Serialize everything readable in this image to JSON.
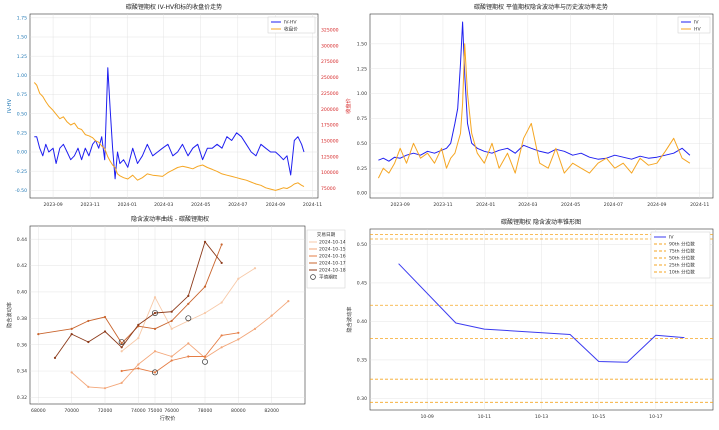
{
  "chart_data": [
    {
      "id": "c1",
      "type": "line",
      "title": "碳酸锂期权 IV-HV和标的收盘价走势",
      "xlabel": "",
      "ylabel": "IV-HV",
      "y2label": "收盘价",
      "ylim": [
        -0.6,
        1.8
      ],
      "y2lim": [
        60000,
        350000
      ],
      "yticks": [
        -0.5,
        -0.25,
        0.0,
        0.25,
        0.5,
        0.75,
        1.0,
        1.25,
        1.5,
        1.75
      ],
      "ytick_labels": [
        "-0.50",
        "-0.25",
        "0.00",
        "0.25",
        "0.50",
        "0.75",
        "1.00",
        "1.25",
        "1.50",
        "1.75"
      ],
      "y2ticks": [
        75000,
        100000,
        125000,
        150000,
        175000,
        200000,
        225000,
        250000,
        275000,
        300000,
        325000
      ],
      "xticks": [
        "2023-09",
        "2023-11",
        "2024-01",
        "2024-03",
        "2024-05",
        "2024-07",
        "2024-09",
        "2024-11"
      ],
      "legend": [
        "IV-HV",
        "收盘价"
      ],
      "legend_loc": "top-right",
      "series": [
        {
          "name": "IV-HV",
          "axis": "left",
          "color": "#1f1ff0",
          "x": [
            "2023-08-01",
            "2023-08-05",
            "2023-08-10",
            "2023-08-15",
            "2023-08-20",
            "2023-08-25",
            "2023-09-01",
            "2023-09-06",
            "2023-09-12",
            "2023-09-18",
            "2023-09-24",
            "2023-09-30",
            "2023-10-06",
            "2023-10-12",
            "2023-10-18",
            "2023-10-24",
            "2023-10-30",
            "2023-11-05",
            "2023-11-10",
            "2023-11-15",
            "2023-11-20",
            "2023-11-25",
            "2023-11-30",
            "2023-12-04",
            "2023-12-08",
            "2023-12-12",
            "2023-12-16",
            "2023-12-20",
            "2023-12-26",
            "2024-01-02",
            "2024-01-10",
            "2024-01-18",
            "2024-01-26",
            "2024-02-03",
            "2024-02-12",
            "2024-02-20",
            "2024-02-28",
            "2024-03-08",
            "2024-03-16",
            "2024-03-24",
            "2024-04-01",
            "2024-04-10",
            "2024-04-18",
            "2024-04-26",
            "2024-05-04",
            "2024-05-12",
            "2024-05-20",
            "2024-05-28",
            "2024-06-05",
            "2024-06-13",
            "2024-06-21",
            "2024-06-29",
            "2024-07-07",
            "2024-07-15",
            "2024-07-23",
            "2024-07-31",
            "2024-08-08",
            "2024-08-16",
            "2024-08-24",
            "2024-09-01",
            "2024-09-08",
            "2024-09-14",
            "2024-09-20",
            "2024-09-26",
            "2024-10-02",
            "2024-10-08",
            "2024-10-14",
            "2024-10-18"
          ],
          "y": [
            0.2,
            0.2,
            0.05,
            -0.05,
            0.1,
            0.0,
            0.05,
            -0.15,
            0.05,
            0.1,
            0.0,
            -0.1,
            -0.05,
            0.05,
            -0.1,
            0.05,
            -0.05,
            0.1,
            0.15,
            0.05,
            0.2,
            -0.1,
            1.1,
            0.55,
            0.05,
            -0.35,
            0.0,
            -0.15,
            -0.1,
            -0.2,
            0.05,
            -0.15,
            -0.05,
            0.1,
            -0.05,
            0.0,
            0.05,
            0.1,
            -0.05,
            0.0,
            0.1,
            -0.05,
            0.05,
            0.1,
            -0.1,
            0.05,
            0.05,
            0.1,
            0.05,
            0.2,
            0.15,
            0.25,
            0.2,
            0.1,
            0.0,
            -0.05,
            0.1,
            0.05,
            0.0,
            0.0,
            -0.05,
            -0.1,
            -0.05,
            -0.3,
            0.15,
            0.2,
            0.1,
            0.0
          ]
        },
        {
          "name": "收盘价",
          "axis": "right",
          "color": "#f5a623",
          "x": [
            "2023-08-01",
            "2023-08-05",
            "2023-08-10",
            "2023-08-15",
            "2023-08-20",
            "2023-08-25",
            "2023-09-01",
            "2023-09-06",
            "2023-09-12",
            "2023-09-18",
            "2023-09-24",
            "2023-09-30",
            "2023-10-06",
            "2023-10-12",
            "2023-10-18",
            "2023-10-24",
            "2023-10-30",
            "2023-11-05",
            "2023-11-10",
            "2023-11-15",
            "2023-11-20",
            "2023-11-25",
            "2023-11-30",
            "2023-12-04",
            "2023-12-08",
            "2023-12-12",
            "2023-12-16",
            "2023-12-20",
            "2023-12-26",
            "2024-01-02",
            "2024-01-10",
            "2024-01-18",
            "2024-01-26",
            "2024-02-03",
            "2024-02-12",
            "2024-02-20",
            "2024-02-28",
            "2024-03-08",
            "2024-03-16",
            "2024-03-24",
            "2024-04-01",
            "2024-04-10",
            "2024-04-18",
            "2024-04-26",
            "2024-05-04",
            "2024-05-12",
            "2024-05-20",
            "2024-05-28",
            "2024-06-05",
            "2024-06-13",
            "2024-06-21",
            "2024-06-29",
            "2024-07-07",
            "2024-07-15",
            "2024-07-23",
            "2024-07-31",
            "2024-08-08",
            "2024-08-16",
            "2024-08-24",
            "2024-09-01",
            "2024-09-08",
            "2024-09-14",
            "2024-09-20",
            "2024-09-26",
            "2024-10-02",
            "2024-10-08",
            "2024-10-14",
            "2024-10-18"
          ],
          "y": [
            242000,
            238000,
            225000,
            220000,
            212000,
            205000,
            198000,
            192000,
            185000,
            188000,
            180000,
            175000,
            178000,
            170000,
            168000,
            160000,
            158000,
            155000,
            150000,
            148000,
            142000,
            138000,
            125000,
            118000,
            112000,
            108000,
            98000,
            95000,
            92000,
            90000,
            96000,
            88000,
            92000,
            98000,
            96000,
            95000,
            94000,
            100000,
            104000,
            108000,
            110000,
            108000,
            106000,
            110000,
            112000,
            108000,
            105000,
            102000,
            98000,
            96000,
            94000,
            92000,
            90000,
            88000,
            85000,
            82000,
            80000,
            76000,
            74000,
            72000,
            74000,
            76000,
            75000,
            78000,
            82000,
            84000,
            80000,
            78000
          ]
        }
      ]
    },
    {
      "id": "c2",
      "type": "line",
      "title": "碳酸锂期权 平值期权隐含波动率与历史波动率走势",
      "xlabel": "",
      "ylabel": "",
      "ylim": [
        -0.05,
        1.8
      ],
      "yticks": [
        0.0,
        0.25,
        0.5,
        0.75,
        1.0,
        1.25,
        1.5
      ],
      "ytick_labels": [
        "0.00",
        "0.25",
        "0.50",
        "0.75",
        "1.00",
        "1.25",
        "1.50"
      ],
      "xticks": [
        "2023-09",
        "2023-11",
        "2024-01",
        "2024-03",
        "2024-05",
        "2024-07",
        "2024-09",
        "2024-11"
      ],
      "legend": [
        "IV",
        "HV"
      ],
      "legend_loc": "top-right",
      "series": [
        {
          "name": "IV",
          "color": "#1f1ff0",
          "x": [
            "2023-08-01",
            "2023-08-08",
            "2023-08-16",
            "2023-08-24",
            "2023-09-01",
            "2023-09-10",
            "2023-09-20",
            "2023-09-30",
            "2023-10-10",
            "2023-10-20",
            "2023-10-30",
            "2023-11-06",
            "2023-11-12",
            "2023-11-18",
            "2023-11-22",
            "2023-11-26",
            "2023-11-29",
            "2023-12-02",
            "2023-12-06",
            "2023-12-12",
            "2023-12-20",
            "2023-12-30",
            "2024-01-10",
            "2024-01-20",
            "2024-02-01",
            "2024-02-12",
            "2024-02-24",
            "2024-03-06",
            "2024-03-18",
            "2024-03-30",
            "2024-04-10",
            "2024-04-22",
            "2024-05-04",
            "2024-05-16",
            "2024-05-28",
            "2024-06-09",
            "2024-06-21",
            "2024-07-03",
            "2024-07-15",
            "2024-07-27",
            "2024-08-08",
            "2024-08-20",
            "2024-09-01",
            "2024-09-13",
            "2024-09-25",
            "2024-10-07",
            "2024-10-18"
          ],
          "y": [
            0.33,
            0.35,
            0.32,
            0.36,
            0.35,
            0.38,
            0.4,
            0.38,
            0.42,
            0.4,
            0.43,
            0.45,
            0.5,
            0.7,
            0.85,
            1.3,
            1.72,
            1.2,
            0.7,
            0.5,
            0.45,
            0.42,
            0.4,
            0.43,
            0.45,
            0.4,
            0.48,
            0.45,
            0.42,
            0.4,
            0.44,
            0.42,
            0.38,
            0.4,
            0.36,
            0.34,
            0.35,
            0.38,
            0.36,
            0.34,
            0.37,
            0.35,
            0.36,
            0.38,
            0.4,
            0.45,
            0.38
          ]
        },
        {
          "name": "HV",
          "color": "#f5a623",
          "x": [
            "2023-08-01",
            "2023-08-08",
            "2023-08-16",
            "2023-08-24",
            "2023-09-01",
            "2023-09-10",
            "2023-09-20",
            "2023-09-30",
            "2023-10-10",
            "2023-10-20",
            "2023-10-30",
            "2023-11-06",
            "2023-11-12",
            "2023-11-18",
            "2023-11-22",
            "2023-11-26",
            "2023-11-29",
            "2023-12-02",
            "2023-12-06",
            "2023-12-12",
            "2023-12-20",
            "2023-12-30",
            "2024-01-10",
            "2024-01-20",
            "2024-02-01",
            "2024-02-12",
            "2024-02-24",
            "2024-03-06",
            "2024-03-18",
            "2024-03-30",
            "2024-04-10",
            "2024-04-22",
            "2024-05-04",
            "2024-05-16",
            "2024-05-28",
            "2024-06-09",
            "2024-06-21",
            "2024-07-03",
            "2024-07-15",
            "2024-07-27",
            "2024-08-08",
            "2024-08-20",
            "2024-09-01",
            "2024-09-13",
            "2024-09-25",
            "2024-10-07",
            "2024-10-18"
          ],
          "y": [
            0.15,
            0.25,
            0.2,
            0.3,
            0.45,
            0.3,
            0.5,
            0.35,
            0.4,
            0.3,
            0.45,
            0.25,
            0.35,
            0.4,
            0.5,
            0.6,
            0.9,
            1.5,
            1.0,
            0.6,
            0.4,
            0.3,
            0.5,
            0.25,
            0.4,
            0.2,
            0.55,
            0.7,
            0.3,
            0.25,
            0.45,
            0.2,
            0.3,
            0.25,
            0.2,
            0.3,
            0.35,
            0.25,
            0.3,
            0.2,
            0.35,
            0.28,
            0.3,
            0.42,
            0.55,
            0.35,
            0.3
          ]
        }
      ]
    },
    {
      "id": "c3",
      "type": "line",
      "title": "隐含波动率曲线 - 碳酸锂期权",
      "xlabel": "行权价",
      "ylabel": "隐含波动率",
      "xlim": [
        67500,
        84000
      ],
      "ylim": [
        0.315,
        0.45
      ],
      "xticks": [
        68000,
        70000,
        72000,
        74000,
        75000,
        76000,
        78000,
        80000,
        82000
      ],
      "yticks": [
        0.32,
        0.34,
        0.36,
        0.38,
        0.4,
        0.42,
        0.44
      ],
      "ytick_labels": [
        "0.32",
        "0.34",
        "0.36",
        "0.38",
        "0.40",
        "0.42",
        "0.44"
      ],
      "legend_title": "交易日期",
      "legend": [
        "2024-10-14",
        "2024-10-15",
        "2024-10-16",
        "2024-10-17",
        "2024-10-18",
        "平值期权"
      ],
      "legend_loc": "top-right",
      "series": [
        {
          "name": "2024-10-14",
          "color": "#f7c9a8",
          "x": [
            73000,
            74000,
            75000,
            76000,
            77000,
            78000,
            79000,
            80000,
            81000
          ],
          "y": [
            0.355,
            0.365,
            0.396,
            0.372,
            0.378,
            0.384,
            0.392,
            0.41,
            0.418
          ]
        },
        {
          "name": "2024-10-15",
          "color": "#f3a77a",
          "x": [
            70000,
            71000,
            72000,
            73000,
            74000,
            75000,
            76000,
            77000,
            78000,
            79000,
            80000,
            81000,
            82000,
            83000
          ],
          "y": [
            0.339,
            0.328,
            0.327,
            0.331,
            0.345,
            0.355,
            0.351,
            0.361,
            0.35,
            0.358,
            0.364,
            0.372,
            0.382,
            0.393
          ]
        },
        {
          "name": "2024-10-16",
          "color": "#e57d45",
          "x": [
            73000,
            74000,
            75000,
            76000,
            77000,
            78000,
            79000,
            80000
          ],
          "y": [
            0.34,
            0.342,
            0.339,
            0.348,
            0.351,
            0.351,
            0.367,
            0.369
          ]
        },
        {
          "name": "2024-10-17",
          "color": "#c9652e",
          "x": [
            68000,
            70000,
            71000,
            72000,
            73000,
            74000,
            75000,
            76000,
            77000,
            78000,
            79000
          ],
          "y": [
            0.368,
            0.372,
            0.378,
            0.381,
            0.361,
            0.374,
            0.372,
            0.378,
            0.391,
            0.404,
            0.436
          ]
        },
        {
          "name": "2024-10-18",
          "color": "#8c3a1a",
          "x": [
            69000,
            70000,
            71000,
            72000,
            73000,
            74000,
            75000,
            76000,
            77000,
            78000,
            79000
          ],
          "y": [
            0.35,
            0.368,
            0.362,
            0.37,
            0.358,
            0.375,
            0.384,
            0.385,
            0.397,
            0.438,
            0.422
          ]
        }
      ],
      "atm_points": [
        {
          "x": 73000,
          "y": 0.362
        },
        {
          "x": 75000,
          "y": 0.384
        },
        {
          "x": 75000,
          "y": 0.339
        },
        {
          "x": 77000,
          "y": 0.38
        },
        {
          "x": 78000,
          "y": 0.347
        }
      ]
    },
    {
      "id": "c4",
      "type": "line",
      "title": "碳酸锂期权 隐含波动率锥形图",
      "xlabel": "",
      "ylabel": "隐含波动率",
      "ylim": [
        0.285,
        0.52
      ],
      "yticks": [
        0.3,
        0.35,
        0.4,
        0.45,
        0.5
      ],
      "ytick_labels": [
        "0.30",
        "0.35",
        "0.40",
        "0.45",
        "0.50"
      ],
      "categories": [
        "10-09",
        "10-10",
        "10-11",
        "10-12",
        "10-13",
        "10-14",
        "10-15",
        "10-16",
        "10-17",
        "10-18"
      ],
      "xticks": [
        "10-09",
        "10-11",
        "10-13",
        "10-15",
        "10-17"
      ],
      "legend": [
        "IV",
        "90th 分位数",
        "75th 分位数",
        "50th 分位数",
        "25th 分位数",
        "10th 分位数"
      ],
      "legend_loc": "top-right",
      "series": [
        {
          "name": "IV",
          "color": "#3b3bf0",
          "x": [
            "10-08",
            "10-10",
            "10-11",
            "10-14",
            "10-15",
            "10-16",
            "10-17",
            "10-18"
          ],
          "y": [
            0.475,
            0.398,
            0.39,
            0.383,
            0.348,
            0.347,
            0.382,
            0.379
          ]
        }
      ],
      "quantile_lines": [
        {
          "name": "90th 分位数",
          "color": "#f5a623",
          "y": 0.513
        },
        {
          "name": "75th 分位数",
          "color": "#f5a623",
          "y": 0.507
        },
        {
          "name": "50th 分位数",
          "color": "#f5a623",
          "y": 0.421
        },
        {
          "name": "25th 分位数",
          "color": "#f5a623",
          "y": 0.378
        },
        {
          "name": "10th 分位数",
          "color": "#f5a623",
          "y": 0.325
        },
        {
          "name": "",
          "color": "#f5a623",
          "y": 0.295
        }
      ]
    }
  ]
}
